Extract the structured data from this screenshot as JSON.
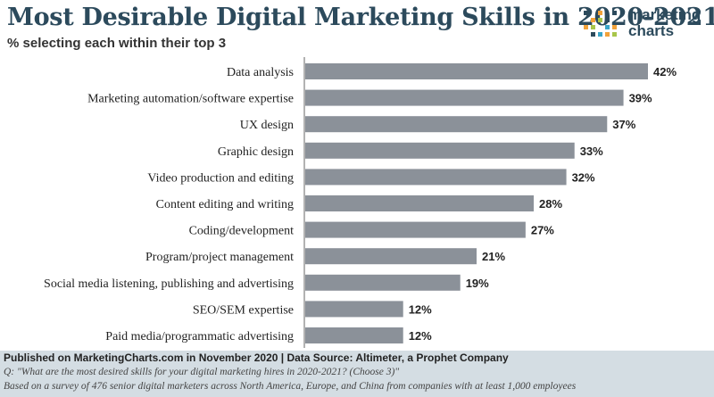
{
  "header": {
    "title": "Most Desirable Digital Marketing Skills in 2020-2021",
    "subtitle": "% selecting each within their top 3"
  },
  "logo": {
    "line1": "marketing",
    "line2": "charts",
    "colors": [
      "#2c4a5c",
      "#3aa6c9",
      "#f2a23a",
      "#a8c64a"
    ]
  },
  "footer": {
    "published": "Published on MarketingCharts.com in November 2020 | Data Source: Altimeter, a Prophet Company",
    "question": "Q: \"What are the most desired skills for your digital marketing hires in 2020-2021? (Choose 3)\"",
    "note": "Based on a survey of 476 senior digital marketers across North America, Europe, and China from companies with at least 1,000 employees"
  },
  "colors": {
    "bar": "#8b9199",
    "axis": "#666666",
    "title": "#2c4a5c"
  },
  "chart_data": {
    "type": "bar",
    "orientation": "horizontal",
    "categories": [
      "Data analysis",
      "Marketing automation/software expertise",
      "UX design",
      "Graphic design",
      "Video production and editing",
      "Content editing and writing",
      "Coding/development",
      "Program/project management",
      "Social media listening, publishing and advertising",
      "SEO/SEM expertise",
      "Paid media/programmatic advertising"
    ],
    "values": [
      42,
      39,
      37,
      33,
      32,
      28,
      27,
      21,
      19,
      12,
      12
    ],
    "value_labels": [
      "42%",
      "39%",
      "37%",
      "33%",
      "32%",
      "28%",
      "27%",
      "21%",
      "19%",
      "12%",
      "12%"
    ],
    "title": "Most Desirable Digital Marketing Skills in 2020-2021",
    "subtitle": "% selecting each within their top 3",
    "xlim": [
      0,
      42
    ],
    "grid": false,
    "legend": "none"
  }
}
